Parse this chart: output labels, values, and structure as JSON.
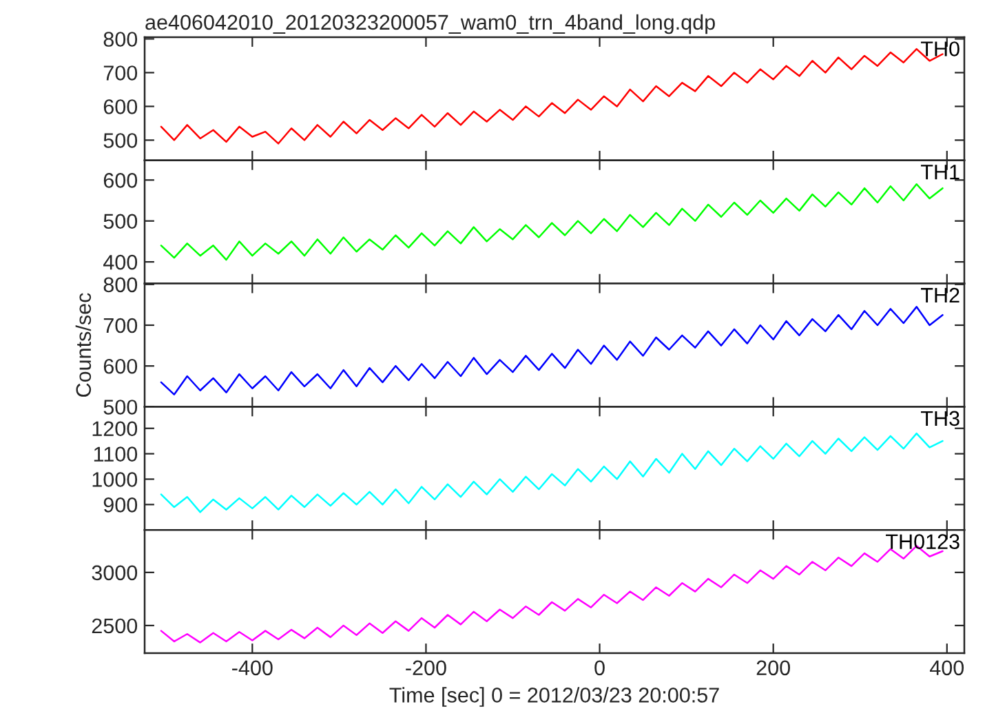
{
  "chart_data": [
    {
      "type": "line",
      "title": "ae406042010_20120323200057_wam0_trn_4band_long.qdp",
      "x": [
        -505,
        -490,
        -475,
        -460,
        -445,
        -430,
        -415,
        -400,
        -385,
        -370,
        -355,
        -340,
        -325,
        -310,
        -295,
        -280,
        -265,
        -250,
        -235,
        -220,
        -205,
        -190,
        -175,
        -160,
        -145,
        -130,
        -115,
        -100,
        -85,
        -70,
        -55,
        -40,
        -25,
        -10,
        5,
        20,
        35,
        50,
        65,
        80,
        95,
        110,
        125,
        140,
        155,
        170,
        185,
        200,
        215,
        230,
        245,
        260,
        275,
        290,
        305,
        320,
        335,
        350,
        365,
        380,
        395
      ],
      "xlim": [
        -524,
        420
      ],
      "xticks": [
        -400,
        -200,
        0,
        200,
        400
      ],
      "ylim": [
        440,
        805
      ],
      "yticks": [
        500,
        600,
        700,
        800
      ],
      "tick_labels": "y",
      "grid": false,
      "legend": false,
      "series": [
        {
          "name": "TH0",
          "color": "#ff0000",
          "values": [
            540,
            500,
            545,
            505,
            530,
            495,
            540,
            510,
            525,
            490,
            535,
            500,
            545,
            510,
            555,
            520,
            560,
            530,
            565,
            535,
            575,
            540,
            580,
            545,
            585,
            555,
            590,
            560,
            600,
            570,
            610,
            580,
            620,
            590,
            630,
            600,
            650,
            615,
            660,
            630,
            670,
            645,
            690,
            660,
            700,
            670,
            710,
            680,
            720,
            690,
            735,
            700,
            745,
            710,
            750,
            720,
            760,
            730,
            770,
            735,
            755
          ]
        }
      ]
    },
    {
      "type": "line",
      "x": [
        -505,
        -490,
        -475,
        -460,
        -445,
        -430,
        -415,
        -400,
        -385,
        -370,
        -355,
        -340,
        -325,
        -310,
        -295,
        -280,
        -265,
        -250,
        -235,
        -220,
        -205,
        -190,
        -175,
        -160,
        -145,
        -130,
        -115,
        -100,
        -85,
        -70,
        -55,
        -40,
        -25,
        -10,
        5,
        20,
        35,
        50,
        65,
        80,
        95,
        110,
        125,
        140,
        155,
        170,
        185,
        200,
        215,
        230,
        245,
        260,
        275,
        290,
        305,
        320,
        335,
        350,
        365,
        380,
        395
      ],
      "xlim": [
        -524,
        420
      ],
      "xticks": [
        -400,
        -200,
        0,
        200,
        400
      ],
      "ylim": [
        347,
        648
      ],
      "yticks": [
        400,
        500,
        600
      ],
      "tick_labels": "y",
      "grid": false,
      "legend": false,
      "series": [
        {
          "name": "TH1",
          "color": "#00ff00",
          "values": [
            440,
            410,
            445,
            415,
            440,
            405,
            450,
            415,
            445,
            420,
            450,
            415,
            455,
            420,
            460,
            425,
            455,
            430,
            465,
            435,
            470,
            440,
            475,
            445,
            485,
            450,
            480,
            455,
            490,
            460,
            495,
            465,
            500,
            470,
            505,
            475,
            515,
            485,
            520,
            490,
            530,
            500,
            540,
            510,
            545,
            515,
            550,
            520,
            555,
            525,
            565,
            535,
            570,
            540,
            580,
            545,
            585,
            550,
            590,
            555,
            580
          ]
        }
      ]
    },
    {
      "type": "line",
      "ylabel": "Counts/sec",
      "x": [
        -505,
        -490,
        -475,
        -460,
        -445,
        -430,
        -415,
        -400,
        -385,
        -370,
        -355,
        -340,
        -325,
        -310,
        -295,
        -280,
        -265,
        -250,
        -235,
        -220,
        -205,
        -190,
        -175,
        -160,
        -145,
        -130,
        -115,
        -100,
        -85,
        -70,
        -55,
        -40,
        -25,
        -10,
        5,
        20,
        35,
        50,
        65,
        80,
        95,
        110,
        125,
        140,
        155,
        170,
        185,
        200,
        215,
        230,
        245,
        260,
        275,
        290,
        305,
        320,
        335,
        350,
        365,
        380,
        395
      ],
      "xlim": [
        -524,
        420
      ],
      "xticks": [
        -400,
        -200,
        0,
        200,
        400
      ],
      "ylim": [
        500,
        802
      ],
      "yticks": [
        500,
        600,
        700,
        800
      ],
      "tick_labels": "y",
      "grid": false,
      "legend": false,
      "series": [
        {
          "name": "TH2",
          "color": "#0000ff",
          "values": [
            560,
            530,
            575,
            540,
            570,
            535,
            580,
            545,
            575,
            540,
            585,
            550,
            580,
            545,
            590,
            550,
            595,
            560,
            600,
            565,
            605,
            570,
            610,
            575,
            620,
            580,
            615,
            585,
            625,
            590,
            630,
            595,
            640,
            605,
            650,
            615,
            660,
            625,
            670,
            640,
            675,
            645,
            685,
            650,
            690,
            655,
            700,
            665,
            710,
            675,
            715,
            685,
            725,
            690,
            735,
            700,
            740,
            705,
            745,
            700,
            725
          ]
        }
      ]
    },
    {
      "type": "line",
      "x": [
        -505,
        -490,
        -475,
        -460,
        -445,
        -430,
        -415,
        -400,
        -385,
        -370,
        -355,
        -340,
        -325,
        -310,
        -295,
        -280,
        -265,
        -250,
        -235,
        -220,
        -205,
        -190,
        -175,
        -160,
        -145,
        -130,
        -115,
        -100,
        -85,
        -70,
        -55,
        -40,
        -25,
        -10,
        5,
        20,
        35,
        50,
        65,
        80,
        95,
        110,
        125,
        140,
        155,
        170,
        185,
        200,
        215,
        230,
        245,
        260,
        275,
        290,
        305,
        320,
        335,
        350,
        365,
        380,
        395
      ],
      "xlim": [
        -524,
        420
      ],
      "xticks": [
        -400,
        -200,
        0,
        200,
        400
      ],
      "ylim": [
        800,
        1285
      ],
      "yticks": [
        900,
        1000,
        1100,
        1200
      ],
      "tick_labels": "y",
      "grid": false,
      "legend": false,
      "series": [
        {
          "name": "TH3",
          "color": "#00ffff",
          "values": [
            940,
            890,
            930,
            870,
            920,
            880,
            925,
            885,
            930,
            880,
            935,
            890,
            940,
            895,
            945,
            900,
            950,
            900,
            960,
            905,
            970,
            920,
            980,
            930,
            990,
            940,
            1000,
            950,
            1010,
            960,
            1020,
            975,
            1040,
            990,
            1050,
            1000,
            1070,
            1010,
            1080,
            1025,
            1100,
            1040,
            1110,
            1055,
            1120,
            1070,
            1130,
            1080,
            1140,
            1090,
            1150,
            1100,
            1160,
            1110,
            1165,
            1115,
            1170,
            1120,
            1180,
            1125,
            1150
          ]
        }
      ]
    },
    {
      "type": "line",
      "xlabel": "Time [sec] 0 = 2012/03/23 20:00:57",
      "x": [
        -505,
        -490,
        -475,
        -460,
        -445,
        -430,
        -415,
        -400,
        -385,
        -370,
        -355,
        -340,
        -325,
        -310,
        -295,
        -280,
        -265,
        -250,
        -235,
        -220,
        -205,
        -190,
        -175,
        -160,
        -145,
        -130,
        -115,
        -100,
        -85,
        -70,
        -55,
        -40,
        -25,
        -10,
        5,
        20,
        35,
        50,
        65,
        80,
        95,
        110,
        125,
        140,
        155,
        170,
        185,
        200,
        215,
        230,
        245,
        260,
        275,
        290,
        305,
        320,
        335,
        350,
        365,
        380,
        395
      ],
      "xlim": [
        -524,
        420
      ],
      "xticks": [
        -400,
        -200,
        0,
        200,
        400
      ],
      "ylim": [
        2240,
        3400
      ],
      "yticks": [
        2500,
        3000
      ],
      "grid": false,
      "legend": false,
      "series": [
        {
          "name": "TH0123",
          "color": "#ff00ff",
          "values": [
            2450,
            2350,
            2420,
            2340,
            2430,
            2350,
            2440,
            2360,
            2450,
            2370,
            2460,
            2380,
            2480,
            2390,
            2500,
            2410,
            2520,
            2430,
            2540,
            2450,
            2570,
            2480,
            2600,
            2510,
            2630,
            2540,
            2650,
            2570,
            2680,
            2600,
            2720,
            2640,
            2750,
            2670,
            2790,
            2710,
            2820,
            2740,
            2860,
            2780,
            2900,
            2820,
            2940,
            2860,
            2980,
            2900,
            3020,
            2940,
            3060,
            2980,
            3100,
            3020,
            3140,
            3060,
            3180,
            3100,
            3220,
            3130,
            3250,
            3150,
            3200
          ]
        }
      ]
    }
  ]
}
